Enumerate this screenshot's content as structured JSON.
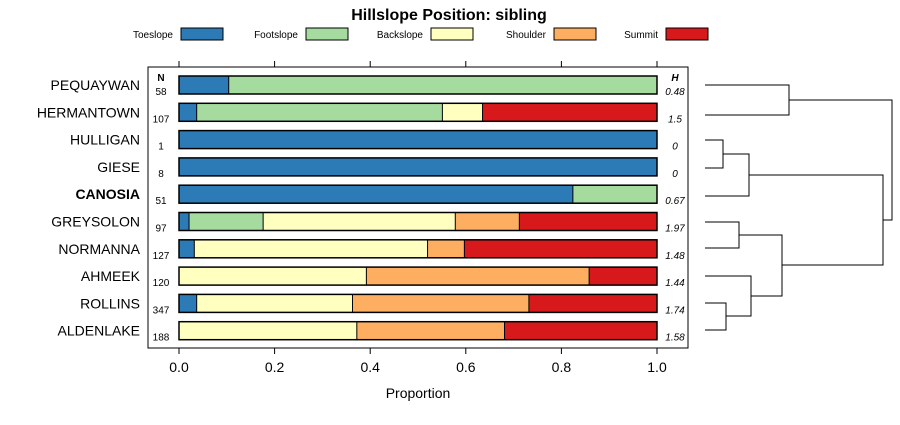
{
  "chart_data": {
    "type": "bar",
    "subtype": "stacked-proportion-with-dendrogram",
    "title": "Hillslope Position: sibling",
    "xlabel": "Proportion",
    "xlim": [
      0,
      1
    ],
    "x_ticks": [
      "0.0",
      "0.2",
      "0.4",
      "0.6",
      "0.8",
      "1.0"
    ],
    "x_tick_values": [
      0,
      0.2,
      0.4,
      0.6,
      0.8,
      1.0
    ],
    "n_label": "N",
    "h_label": "H",
    "highlight": "CANOSIA",
    "legend_position": "top",
    "series": [
      {
        "name": "Toeslope",
        "color": "#2C7BB6"
      },
      {
        "name": "Footslope",
        "color": "#A6DBA0"
      },
      {
        "name": "Backslope",
        "color": "#FFFFBF"
      },
      {
        "name": "Shoulder",
        "color": "#FDAE61"
      },
      {
        "name": "Summit",
        "color": "#D7191C"
      }
    ],
    "categories": [
      "PEQUAYWAN",
      "HERMANTOWN",
      "HULLIGAN",
      "GIESE",
      "CANOSIA",
      "GREYSOLON",
      "NORMANNA",
      "AHMEEK",
      "ROLLINS",
      "ALDENLAKE"
    ],
    "n_values": [
      "58",
      "107",
      "1",
      "8",
      "51",
      "97",
      "127",
      "120",
      "347",
      "188"
    ],
    "h_values": [
      "0.48",
      "1.5",
      "0",
      "0",
      "0.67",
      "1.97",
      "1.48",
      "1.44",
      "1.74",
      "1.58"
    ],
    "proportions": [
      [
        0.104,
        0.896,
        0,
        0,
        0
      ],
      [
        0.037,
        0.514,
        0.084,
        0,
        0.365
      ],
      [
        1.0,
        0,
        0,
        0,
        0
      ],
      [
        1.0,
        0,
        0,
        0,
        0
      ],
      [
        0.824,
        0.176,
        0,
        0,
        0
      ],
      [
        0.021,
        0.155,
        0.402,
        0.134,
        0.288
      ],
      [
        0.032,
        0,
        0.488,
        0.077,
        0.403
      ],
      [
        0,
        0,
        0.392,
        0.466,
        0.142
      ],
      [
        0.037,
        0,
        0.326,
        0.369,
        0.268
      ],
      [
        0,
        0,
        0.372,
        0.309,
        0.319
      ]
    ]
  }
}
